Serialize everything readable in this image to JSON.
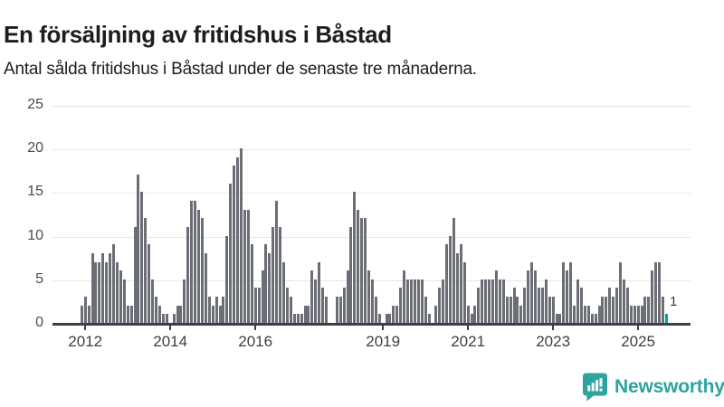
{
  "header": {
    "title": "En försäljning av fritidshus i Båstad",
    "subtitle": "Antal sålda fritidshus i Båstad under de senaste tre månaderna."
  },
  "chart_data": {
    "type": "bar",
    "title": "En försäljning av fritidshus i Båstad",
    "subtitle": "Antal sålda fritidshus i Båstad under de senaste tre månaderna.",
    "xlabel": "",
    "ylabel": "",
    "ylim": [
      0,
      25
    ],
    "y_ticks": [
      0,
      5,
      10,
      15,
      20,
      25
    ],
    "x_tick_years": [
      "2012",
      "2014",
      "2016",
      "2019",
      "2021",
      "2023",
      "2025"
    ],
    "grid": "horizontal",
    "frequency": "monthly",
    "start_month": "2011-12",
    "values": [
      2,
      3,
      2,
      8,
      7,
      7,
      8,
      7,
      8,
      9,
      7,
      6,
      5,
      2,
      2,
      11,
      17,
      15,
      12,
      9,
      5,
      3,
      2,
      1,
      1,
      0,
      1,
      2,
      2,
      5,
      11,
      14,
      14,
      13,
      12,
      8,
      3,
      2,
      3,
      2,
      3,
      10,
      16,
      18,
      19,
      20,
      13,
      13,
      9,
      4,
      4,
      6,
      9,
      8,
      11,
      14,
      11,
      7,
      4,
      3,
      1,
      1,
      1,
      2,
      2,
      6,
      5,
      7,
      4,
      3,
      0,
      0,
      3,
      3,
      4,
      6,
      11,
      15,
      13,
      12,
      12,
      6,
      5,
      3,
      1,
      0,
      1,
      1,
      2,
      2,
      4,
      6,
      5,
      5,
      5,
      5,
      5,
      3,
      1,
      0,
      2,
      4,
      5,
      9,
      10,
      12,
      8,
      9,
      7,
      2,
      1,
      2,
      4,
      5,
      5,
      5,
      5,
      6,
      5,
      5,
      3,
      3,
      4,
      3,
      2,
      4,
      6,
      7,
      6,
      4,
      4,
      5,
      3,
      3,
      1,
      1,
      7,
      6,
      7,
      2,
      5,
      4,
      2,
      2,
      1,
      1,
      2,
      3,
      3,
      4,
      3,
      4,
      7,
      5,
      4,
      2,
      2,
      2,
      2,
      3,
      3,
      6,
      7,
      7,
      3,
      1
    ],
    "highlight_last_bar": {
      "value": 1,
      "label": "1",
      "color": "#00a2a2"
    },
    "bar_color": "#6b6f75"
  },
  "footer": {
    "brand": "Newsworthy",
    "brand_color": "#2ca39d",
    "icon": "newsworthy-logo-icon"
  }
}
